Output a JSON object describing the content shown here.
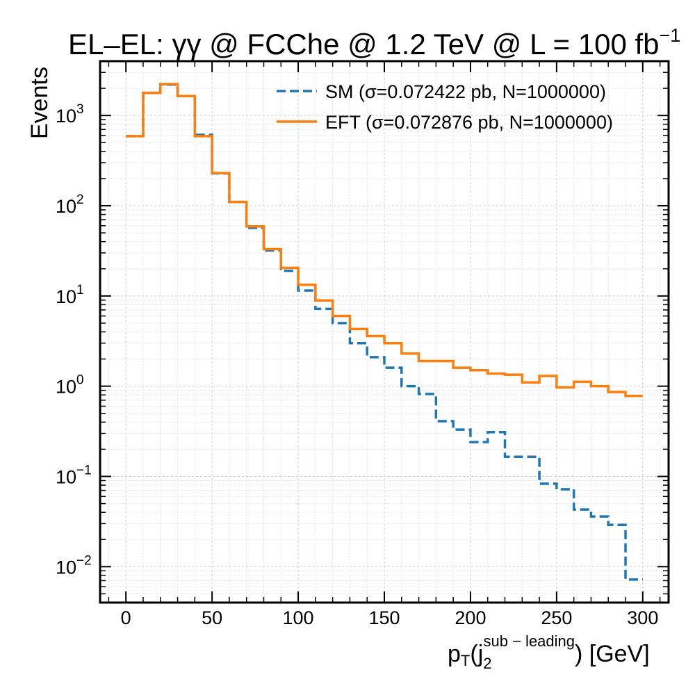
{
  "chart_data": {
    "type": "step",
    "title": "EL–EL: γγ @ FCChe @ 1.2 TeV @ L = 100 fb",
    "title_superscript": "−1",
    "xlabel": {
      "base": "p",
      "sub_T": "T",
      "open": "(j",
      "jet_sub": "2",
      "jet_sup": "sub − leading",
      "close": ") [GeV]"
    },
    "ylabel": "Events",
    "xlim": [
      -15,
      315
    ],
    "ylim": [
      0.004,
      4000
    ],
    "yscale": "log",
    "grid": true,
    "legend_position": "top-right",
    "x_ticks": [
      0,
      50,
      100,
      150,
      200,
      250,
      300
    ],
    "x_tick_labels": [
      "0",
      "50",
      "100",
      "150",
      "200",
      "250",
      "300"
    ],
    "y_ticks": [
      {
        "value": 0.01,
        "base": "10",
        "exp": "−2"
      },
      {
        "value": 0.1,
        "base": "10",
        "exp": "−1"
      },
      {
        "value": 1,
        "base": "10",
        "exp": "0"
      },
      {
        "value": 10,
        "base": "10",
        "exp": "1"
      },
      {
        "value": 100,
        "base": "10",
        "exp": "2"
      },
      {
        "value": 1000,
        "base": "10",
        "exp": "3"
      }
    ],
    "bin_edges": [
      0,
      10,
      20,
      30,
      40,
      50,
      60,
      70,
      80,
      90,
      100,
      110,
      120,
      130,
      140,
      150,
      160,
      170,
      180,
      190,
      200,
      210,
      220,
      230,
      240,
      250,
      260,
      270,
      280,
      290,
      300
    ],
    "series": [
      {
        "name": "SM (σ=0.072422 pb, N=1000000)",
        "color": "#1f77b4",
        "style": "dashed",
        "values": [
          590,
          1780,
          2200,
          1640,
          610,
          228,
          110,
          57,
          32,
          19,
          11.5,
          7.2,
          5.0,
          3.0,
          2.1,
          1.6,
          1.0,
          0.82,
          0.41,
          0.33,
          0.24,
          0.31,
          0.165,
          0.165,
          0.083,
          0.072,
          0.043,
          0.036,
          0.029,
          0.0072
        ]
      },
      {
        "name": "EFT (σ=0.072876 pb, N=1000000)",
        "color": "#ff7f0e",
        "style": "solid",
        "values": [
          590,
          1780,
          2230,
          1640,
          590,
          230,
          110,
          59,
          33,
          20.5,
          13.3,
          8.9,
          6.0,
          4.3,
          3.6,
          3.0,
          2.3,
          1.9,
          1.9,
          1.6,
          1.5,
          1.38,
          1.34,
          1.1,
          1.3,
          0.97,
          1.12,
          1.0,
          0.86,
          0.78
        ]
      }
    ]
  }
}
